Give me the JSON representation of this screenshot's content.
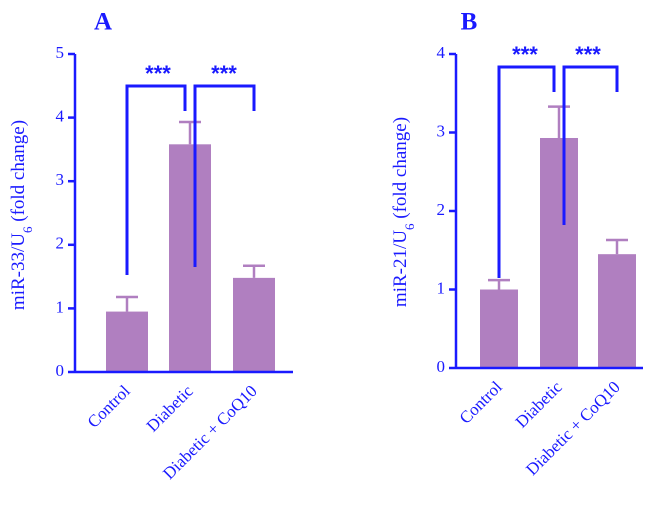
{
  "colors": {
    "bar": "#b07fc0",
    "axis": "#1a1aff",
    "text": "#1a1aff"
  },
  "chart_data": [
    {
      "type": "bar",
      "panel": "A",
      "ylabel": "miR-33/U",
      "ylabel_sub": "6",
      "ylabel_tail": " (fold change)",
      "ylim": [
        0,
        5
      ],
      "yticks": [
        0,
        1,
        2,
        3,
        4,
        5
      ],
      "categories": [
        "Control",
        "Diabetic",
        "Diabetic + CoQ10"
      ],
      "values": [
        0.95,
        3.58,
        1.48
      ],
      "errors": [
        0.23,
        0.35,
        0.19
      ],
      "significance": [
        {
          "from": 0,
          "to": 1,
          "label": "***"
        },
        {
          "from": 1,
          "to": 2,
          "label": "***"
        }
      ]
    },
    {
      "type": "bar",
      "panel": "B",
      "ylabel": "miR-21/U",
      "ylabel_sub": "6",
      "ylabel_tail": " (fold change)",
      "ylim": [
        0,
        4
      ],
      "yticks": [
        0,
        1,
        2,
        3,
        4
      ],
      "categories": [
        "Control",
        "Diabetic",
        "Diabetic + CoQ10"
      ],
      "values": [
        1.0,
        2.93,
        1.45
      ],
      "errors": [
        0.12,
        0.4,
        0.18
      ],
      "significance": [
        {
          "from": 0,
          "to": 1,
          "label": "***"
        },
        {
          "from": 1,
          "to": 2,
          "label": "***"
        }
      ]
    }
  ]
}
